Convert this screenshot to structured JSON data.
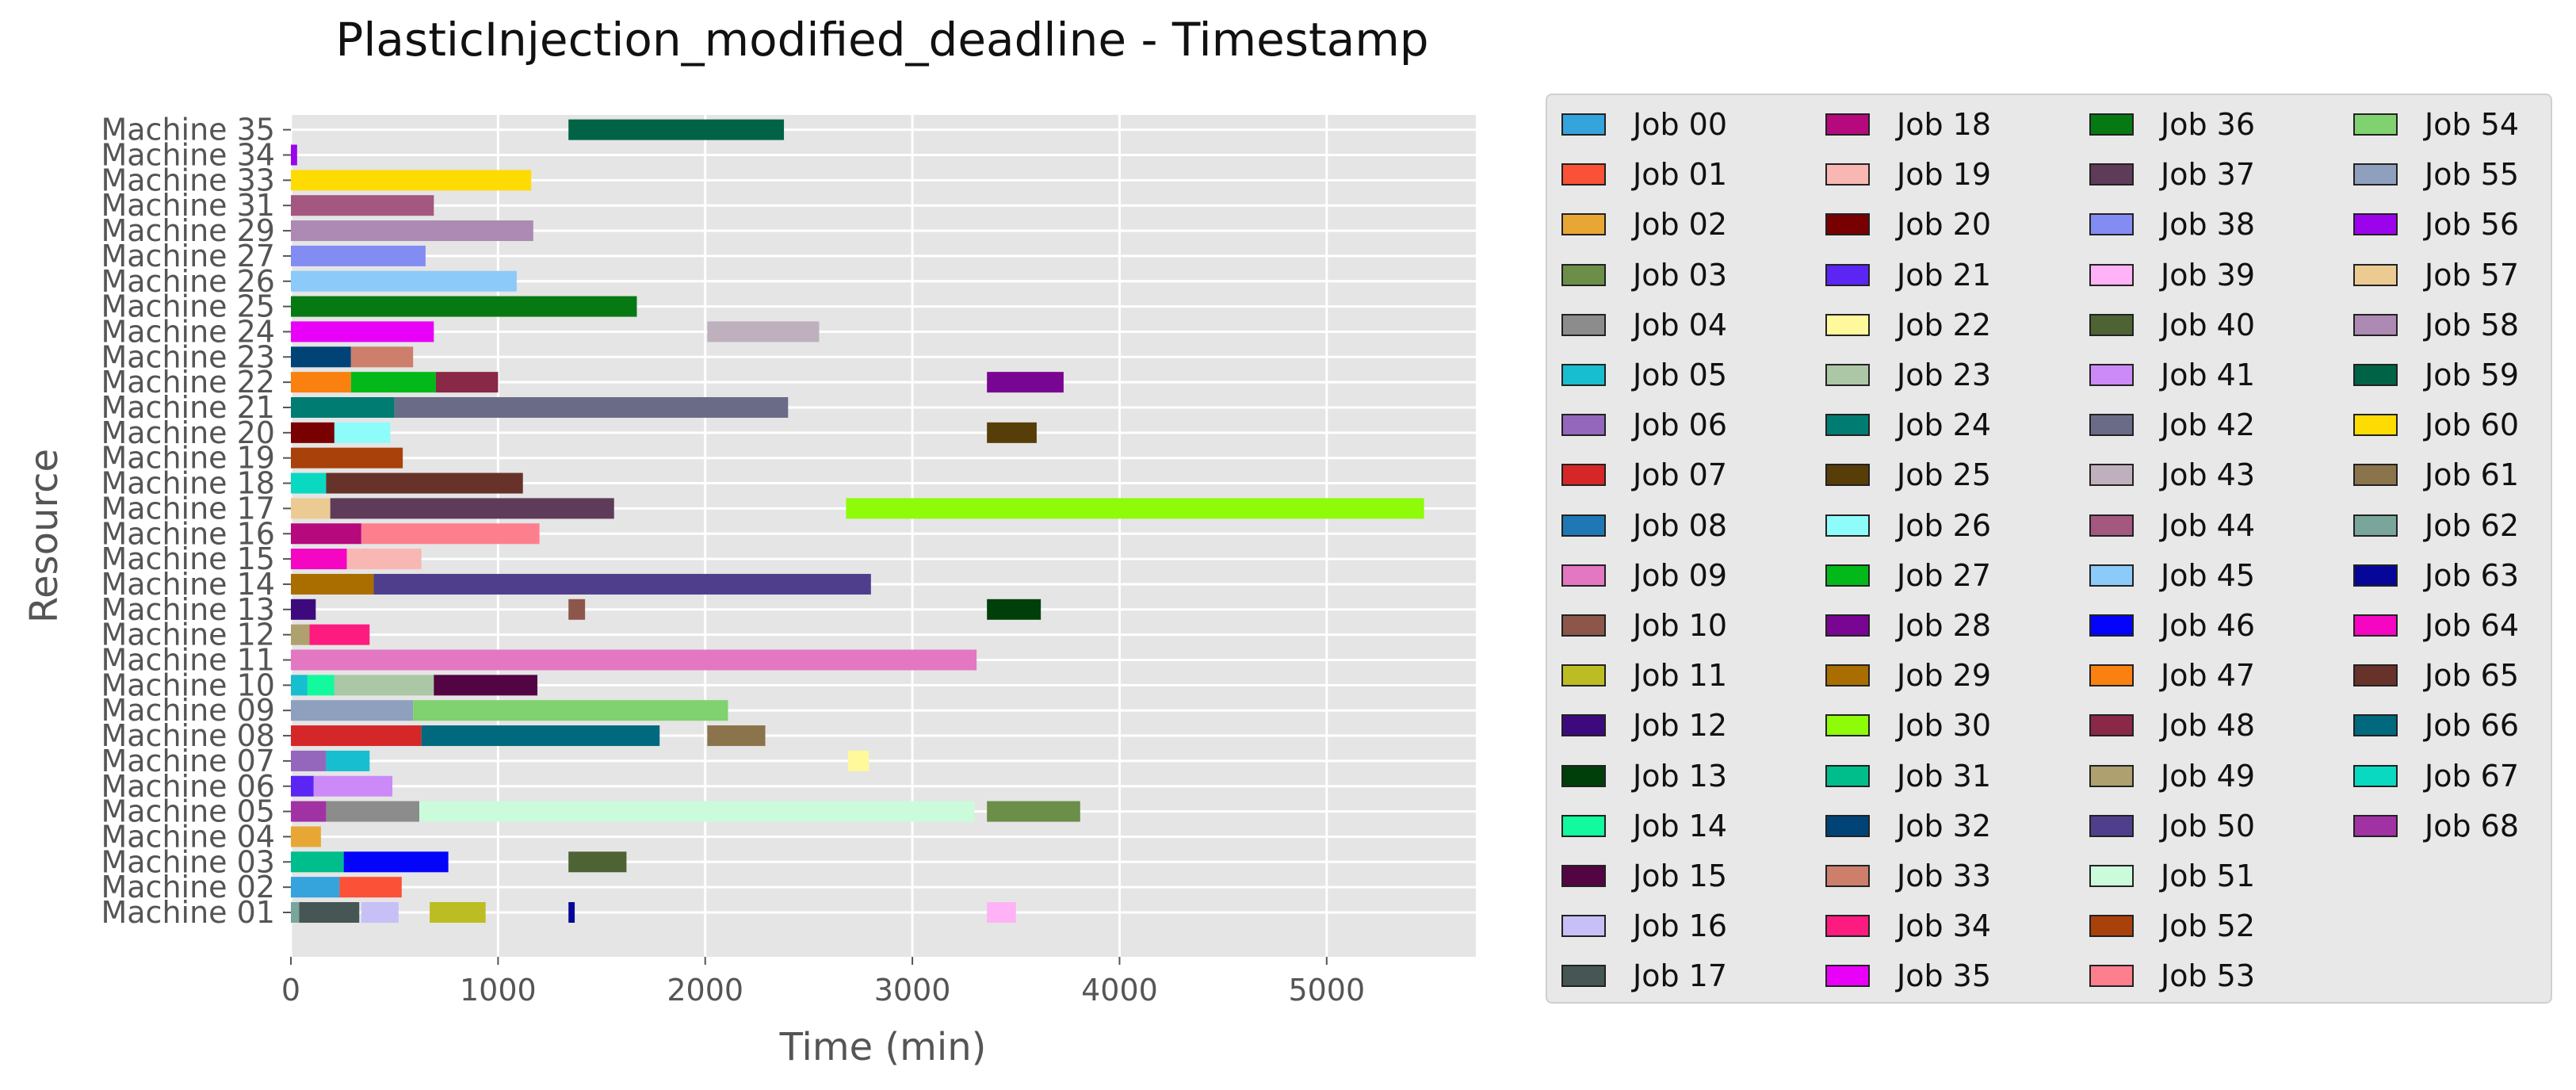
{
  "chart_data": {
    "type": "bar",
    "orientation": "horizontal",
    "chart_kind": "gantt",
    "title": "PlasticInjection_modified_deadline - Timestamp",
    "xlabel": "Time (min)",
    "ylabel": "Resource",
    "xlim": [
      0,
      5720
    ],
    "x_ticks": [
      0,
      1000,
      2000,
      3000,
      4000,
      5000
    ],
    "grid": true,
    "legend_position": "outside-right",
    "legend_columns": 4,
    "categories": [
      "Machine 01",
      "Machine 02",
      "Machine 03",
      "Machine 04",
      "Machine 05",
      "Machine 06",
      "Machine 07",
      "Machine 08",
      "Machine 09",
      "Machine 10",
      "Machine 11",
      "Machine 12",
      "Machine 13",
      "Machine 14",
      "Machine 15",
      "Machine 16",
      "Machine 17",
      "Machine 18",
      "Machine 19",
      "Machine 20",
      "Machine 21",
      "Machine 22",
      "Machine 23",
      "Machine 24",
      "Machine 25",
      "Machine 26",
      "Machine 27",
      "Machine 29",
      "Machine 31",
      "Machine 33",
      "Machine 34",
      "Machine 35"
    ],
    "jobs": [
      {
        "name": "Job 00",
        "color": "#35a3dc"
      },
      {
        "name": "Job 01",
        "color": "#fb5136"
      },
      {
        "name": "Job 02",
        "color": "#e8a735"
      },
      {
        "name": "Job 03",
        "color": "#6b8e48"
      },
      {
        "name": "Job 04",
        "color": "#8c8c8c"
      },
      {
        "name": "Job 05",
        "color": "#17becf"
      },
      {
        "name": "Job 06",
        "color": "#9467bd"
      },
      {
        "name": "Job 07",
        "color": "#d62728"
      },
      {
        "name": "Job 08",
        "color": "#1f77b4"
      },
      {
        "name": "Job 09",
        "color": "#e377c2"
      },
      {
        "name": "Job 10",
        "color": "#8c564b"
      },
      {
        "name": "Job 11",
        "color": "#bcbd22"
      },
      {
        "name": "Job 12",
        "color": "#3d0a7e"
      },
      {
        "name": "Job 13",
        "color": "#013f0a"
      },
      {
        "name": "Job 14",
        "color": "#12fa9d"
      },
      {
        "name": "Job 15",
        "color": "#530443"
      },
      {
        "name": "Job 16",
        "color": "#c7c0f7"
      },
      {
        "name": "Job 17",
        "color": "#455655"
      },
      {
        "name": "Job 18",
        "color": "#b6097d"
      },
      {
        "name": "Job 19",
        "color": "#f9b7b4"
      },
      {
        "name": "Job 20",
        "color": "#790000"
      },
      {
        "name": "Job 21",
        "color": "#5b25f4"
      },
      {
        "name": "Job 22",
        "color": "#fff99b"
      },
      {
        "name": "Job 23",
        "color": "#acc7a6"
      },
      {
        "name": "Job 24",
        "color": "#007c73"
      },
      {
        "name": "Job 25",
        "color": "#573d07"
      },
      {
        "name": "Job 26",
        "color": "#8efcfa"
      },
      {
        "name": "Job 27",
        "color": "#02b919"
      },
      {
        "name": "Job 28",
        "color": "#790593"
      },
      {
        "name": "Job 29",
        "color": "#a96d00"
      },
      {
        "name": "Job 30",
        "color": "#8efb09"
      },
      {
        "name": "Job 31",
        "color": "#00be8c"
      },
      {
        "name": "Job 32",
        "color": "#004477"
      },
      {
        "name": "Job 33",
        "color": "#cd7f6c"
      },
      {
        "name": "Job 34",
        "color": "#fd1b7f"
      },
      {
        "name": "Job 35",
        "color": "#e800f8"
      },
      {
        "name": "Job 36",
        "color": "#067913"
      },
      {
        "name": "Job 37",
        "color": "#5f3b5a"
      },
      {
        "name": "Job 38",
        "color": "#838cf2"
      },
      {
        "name": "Job 39",
        "color": "#ffb2f5"
      },
      {
        "name": "Job 40",
        "color": "#4d6333"
      },
      {
        "name": "Job 41",
        "color": "#cb8af7"
      },
      {
        "name": "Job 42",
        "color": "#6a6c87"
      },
      {
        "name": "Job 43",
        "color": "#beb1bd"
      },
      {
        "name": "Job 44",
        "color": "#a4577f"
      },
      {
        "name": "Job 45",
        "color": "#8bcaf9"
      },
      {
        "name": "Job 46",
        "color": "#0404fb"
      },
      {
        "name": "Job 47",
        "color": "#fa810f"
      },
      {
        "name": "Job 48",
        "color": "#892847"
      },
      {
        "name": "Job 49",
        "color": "#aea16f"
      },
      {
        "name": "Job 50",
        "color": "#4f3e8b"
      },
      {
        "name": "Job 51",
        "color": "#cbfbdb"
      },
      {
        "name": "Job 52",
        "color": "#a9410b"
      },
      {
        "name": "Job 53",
        "color": "#fd7f8e"
      },
      {
        "name": "Job 54",
        "color": "#80d16f"
      },
      {
        "name": "Job 55",
        "color": "#8f9fbe"
      },
      {
        "name": "Job 56",
        "color": "#9b03ed"
      },
      {
        "name": "Job 57",
        "color": "#eccb93"
      },
      {
        "name": "Job 58",
        "color": "#ac8ab3"
      },
      {
        "name": "Job 59",
        "color": "#016346"
      },
      {
        "name": "Job 60",
        "color": "#fedb02"
      },
      {
        "name": "Job 61",
        "color": "#8b734b"
      },
      {
        "name": "Job 62",
        "color": "#79a59b"
      },
      {
        "name": "Job 63",
        "color": "#060799"
      },
      {
        "name": "Job 64",
        "color": "#f406c2"
      },
      {
        "name": "Job 65",
        "color": "#67322a"
      },
      {
        "name": "Job 66",
        "color": "#00697d"
      },
      {
        "name": "Job 67",
        "color": "#0ad9c1"
      },
      {
        "name": "Job 68",
        "color": "#a032a4"
      }
    ],
    "tasks": [
      {
        "machine": "Machine 01",
        "job": "Job 62",
        "start": 0,
        "end": 40
      },
      {
        "machine": "Machine 01",
        "job": "Job 17",
        "start": 40,
        "end": 330
      },
      {
        "machine": "Machine 01",
        "job": "Job 16",
        "start": 340,
        "end": 520
      },
      {
        "machine": "Machine 01",
        "job": "Job 11",
        "start": 670,
        "end": 940
      },
      {
        "machine": "Machine 01",
        "job": "Job 63",
        "start": 1340,
        "end": 1370
      },
      {
        "machine": "Machine 01",
        "job": "Job 39",
        "start": 3360,
        "end": 3500
      },
      {
        "machine": "Machine 02",
        "job": "Job 00",
        "start": 0,
        "end": 235
      },
      {
        "machine": "Machine 02",
        "job": "Job 01",
        "start": 235,
        "end": 535
      },
      {
        "machine": "Machine 03",
        "job": "Job 31",
        "start": 0,
        "end": 255
      },
      {
        "machine": "Machine 03",
        "job": "Job 46",
        "start": 255,
        "end": 760
      },
      {
        "machine": "Machine 03",
        "job": "Job 40",
        "start": 1340,
        "end": 1620
      },
      {
        "machine": "Machine 04",
        "job": "Job 02",
        "start": 0,
        "end": 145
      },
      {
        "machine": "Machine 05",
        "job": "Job 68",
        "start": 0,
        "end": 170
      },
      {
        "machine": "Machine 05",
        "job": "Job 04",
        "start": 170,
        "end": 620
      },
      {
        "machine": "Machine 05",
        "job": "Job 51",
        "start": 620,
        "end": 3300
      },
      {
        "machine": "Machine 05",
        "job": "Job 03",
        "start": 3360,
        "end": 3810
      },
      {
        "machine": "Machine 06",
        "job": "Job 21",
        "start": 0,
        "end": 110
      },
      {
        "machine": "Machine 06",
        "job": "Job 41",
        "start": 110,
        "end": 490
      },
      {
        "machine": "Machine 07",
        "job": "Job 06",
        "start": 0,
        "end": 170
      },
      {
        "machine": "Machine 07",
        "job": "Job 05",
        "start": 170,
        "end": 380
      },
      {
        "machine": "Machine 07",
        "job": "Job 22",
        "start": 2690,
        "end": 2790
      },
      {
        "machine": "Machine 08",
        "job": "Job 07",
        "start": 0,
        "end": 630
      },
      {
        "machine": "Machine 08",
        "job": "Job 66",
        "start": 630,
        "end": 1780
      },
      {
        "machine": "Machine 08",
        "job": "Job 61",
        "start": 2010,
        "end": 2290
      },
      {
        "machine": "Machine 09",
        "job": "Job 55",
        "start": 0,
        "end": 590
      },
      {
        "machine": "Machine 09",
        "job": "Job 54",
        "start": 590,
        "end": 2110
      },
      {
        "machine": "Machine 10",
        "job": "Job 05",
        "start": 0,
        "end": 80
      },
      {
        "machine": "Machine 10",
        "job": "Job 14",
        "start": 80,
        "end": 210
      },
      {
        "machine": "Machine 10",
        "job": "Job 23",
        "start": 210,
        "end": 690
      },
      {
        "machine": "Machine 10",
        "job": "Job 15",
        "start": 690,
        "end": 1190
      },
      {
        "machine": "Machine 11",
        "job": "Job 09",
        "start": 0,
        "end": 3310
      },
      {
        "machine": "Machine 12",
        "job": "Job 49",
        "start": 0,
        "end": 90
      },
      {
        "machine": "Machine 12",
        "job": "Job 34",
        "start": 90,
        "end": 380
      },
      {
        "machine": "Machine 13",
        "job": "Job 12",
        "start": 0,
        "end": 120
      },
      {
        "machine": "Machine 13",
        "job": "Job 10",
        "start": 1340,
        "end": 1420
      },
      {
        "machine": "Machine 13",
        "job": "Job 13",
        "start": 3360,
        "end": 3620
      },
      {
        "machine": "Machine 14",
        "job": "Job 29",
        "start": 0,
        "end": 400
      },
      {
        "machine": "Machine 14",
        "job": "Job 50",
        "start": 400,
        "end": 2800
      },
      {
        "machine": "Machine 15",
        "job": "Job 64",
        "start": 0,
        "end": 270
      },
      {
        "machine": "Machine 15",
        "job": "Job 19",
        "start": 270,
        "end": 630
      },
      {
        "machine": "Machine 16",
        "job": "Job 18",
        "start": 0,
        "end": 340
      },
      {
        "machine": "Machine 16",
        "job": "Job 53",
        "start": 340,
        "end": 1200
      },
      {
        "machine": "Machine 17",
        "job": "Job 57",
        "start": 0,
        "end": 190
      },
      {
        "machine": "Machine 17",
        "job": "Job 37",
        "start": 190,
        "end": 1560
      },
      {
        "machine": "Machine 17",
        "job": "Job 30",
        "start": 2680,
        "end": 5470
      },
      {
        "machine": "Machine 18",
        "job": "Job 67",
        "start": 0,
        "end": 170
      },
      {
        "machine": "Machine 18",
        "job": "Job 65",
        "start": 170,
        "end": 1120
      },
      {
        "machine": "Machine 19",
        "job": "Job 52",
        "start": 0,
        "end": 540
      },
      {
        "machine": "Machine 20",
        "job": "Job 20",
        "start": 0,
        "end": 210
      },
      {
        "machine": "Machine 20",
        "job": "Job 26",
        "start": 210,
        "end": 480
      },
      {
        "machine": "Machine 20",
        "job": "Job 25",
        "start": 3360,
        "end": 3600
      },
      {
        "machine": "Machine 21",
        "job": "Job 24",
        "start": 0,
        "end": 500
      },
      {
        "machine": "Machine 21",
        "job": "Job 42",
        "start": 500,
        "end": 2400
      },
      {
        "machine": "Machine 22",
        "job": "Job 47",
        "start": 0,
        "end": 290
      },
      {
        "machine": "Machine 22",
        "job": "Job 27",
        "start": 290,
        "end": 700
      },
      {
        "machine": "Machine 22",
        "job": "Job 48",
        "start": 700,
        "end": 1000
      },
      {
        "machine": "Machine 22",
        "job": "Job 28",
        "start": 3360,
        "end": 3730
      },
      {
        "machine": "Machine 23",
        "job": "Job 32",
        "start": 0,
        "end": 290
      },
      {
        "machine": "Machine 23",
        "job": "Job 33",
        "start": 290,
        "end": 590
      },
      {
        "machine": "Machine 24",
        "job": "Job 35",
        "start": 0,
        "end": 690
      },
      {
        "machine": "Machine 24",
        "job": "Job 43",
        "start": 2010,
        "end": 2550
      },
      {
        "machine": "Machine 25",
        "job": "Job 36",
        "start": 0,
        "end": 1670
      },
      {
        "machine": "Machine 26",
        "job": "Job 45",
        "start": 0,
        "end": 1090
      },
      {
        "machine": "Machine 27",
        "job": "Job 38",
        "start": 0,
        "end": 650
      },
      {
        "machine": "Machine 29",
        "job": "Job 58",
        "start": 0,
        "end": 1170
      },
      {
        "machine": "Machine 31",
        "job": "Job 44",
        "start": 0,
        "end": 690
      },
      {
        "machine": "Machine 33",
        "job": "Job 60",
        "start": 0,
        "end": 1160
      },
      {
        "machine": "Machine 34",
        "job": "Job 56",
        "start": 0,
        "end": 30
      },
      {
        "machine": "Machine 35",
        "job": "Job 59",
        "start": 1340,
        "end": 2380
      }
    ]
  }
}
